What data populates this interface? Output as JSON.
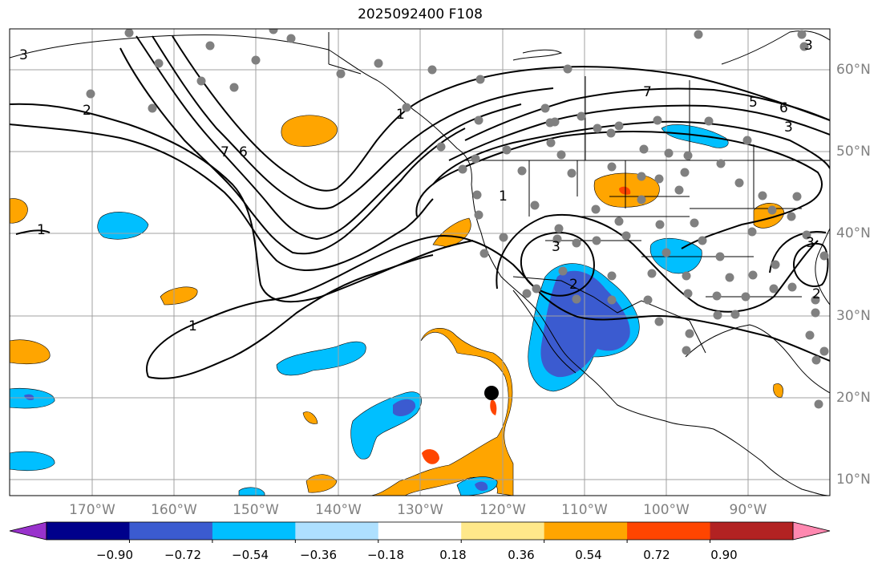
{
  "title": "2025092400 F108",
  "map": {
    "projection": "equirectangular",
    "extent_lon": [
      -180,
      -80
    ],
    "extent_lat": [
      8,
      65
    ],
    "lat_labels": [
      "60°N",
      "50°N",
      "40°N",
      "30°N",
      "20°N",
      "10°N"
    ],
    "lon_labels": [
      "170°W",
      "160°W",
      "150°W",
      "140°W",
      "130°W",
      "120°W",
      "110°W",
      "100°W",
      "90°W"
    ],
    "gridlines": true,
    "marker_label": "black circle at ~121°W, 20.5°N"
  },
  "contours": {
    "labels": [
      "3",
      "2",
      "7",
      "6",
      "1",
      "2",
      "3",
      "1",
      "2",
      "3",
      "5",
      "6",
      "3",
      "7",
      "1",
      "3",
      "1"
    ],
    "label_values_seen": [
      1,
      2,
      3,
      5,
      6,
      7
    ]
  },
  "colorbar": {
    "ticks": [
      "−0.90",
      "−0.72",
      "−0.54",
      "−0.36",
      "−0.18",
      "0.18",
      "0.36",
      "0.54",
      "0.72",
      "0.90"
    ],
    "colors": [
      "#9932cc",
      "#00008b",
      "#3b5bd0",
      "#00bfff",
      "#aee0ff",
      "#ffffff",
      "#ffe88a",
      "#ffa500",
      "#ff4500",
      "#b22222",
      "#ff88b0"
    ]
  },
  "stations_count_note": "grey dots = station locations"
}
